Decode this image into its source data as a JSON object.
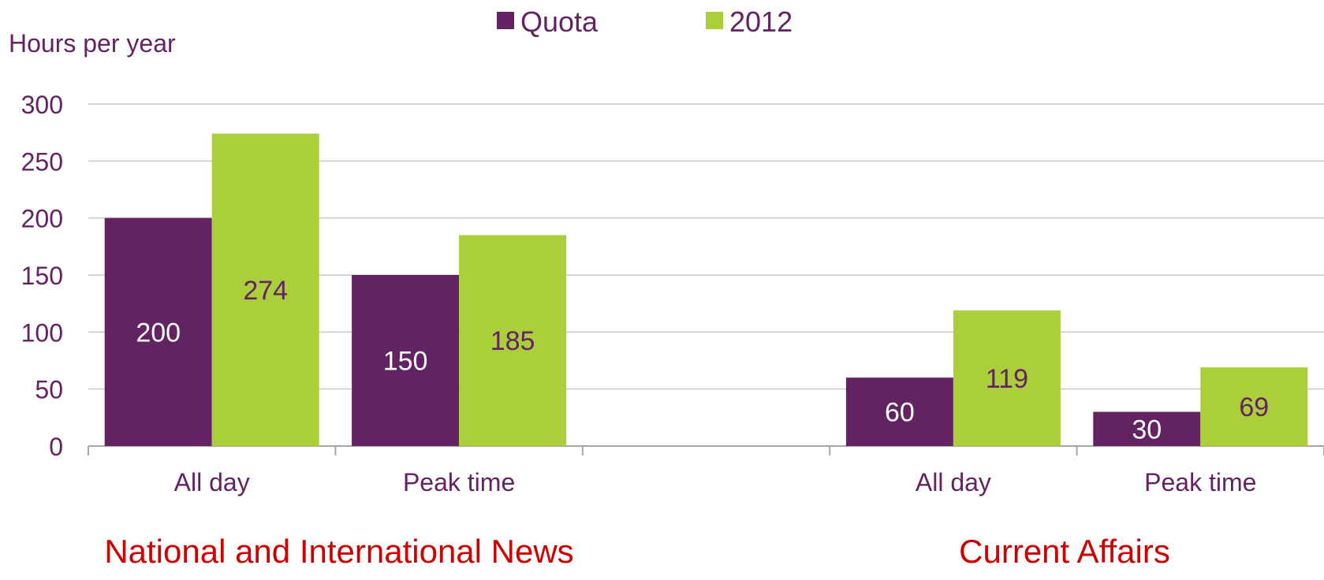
{
  "chart_data": {
    "type": "bar",
    "ylabel": "Hours per year",
    "ylim": [
      0,
      300
    ],
    "yticks": [
      0,
      50,
      100,
      150,
      200,
      250,
      300
    ],
    "grid": true,
    "legend_position": "top-center",
    "categories": [
      "All day",
      "Peak time",
      "",
      "All day",
      "Peak time"
    ],
    "groups": [
      {
        "label": "National and International News",
        "categories": [
          "All day",
          "Peak time"
        ]
      },
      {
        "label": "Current Affairs",
        "categories": [
          "All day",
          "Peak time"
        ]
      }
    ],
    "series": [
      {
        "name": "Quota",
        "color": "#632363",
        "label_color": "#ffffff",
        "values": [
          200,
          150,
          null,
          60,
          30
        ]
      },
      {
        "name": "2012",
        "color": "#aacf3a",
        "label_color": "#632363",
        "values": [
          274,
          185,
          null,
          119,
          69
        ]
      }
    ],
    "colors": {
      "axis_text": "#632363",
      "group_label": "#cc0000",
      "grid": "#c8c8c8"
    }
  }
}
